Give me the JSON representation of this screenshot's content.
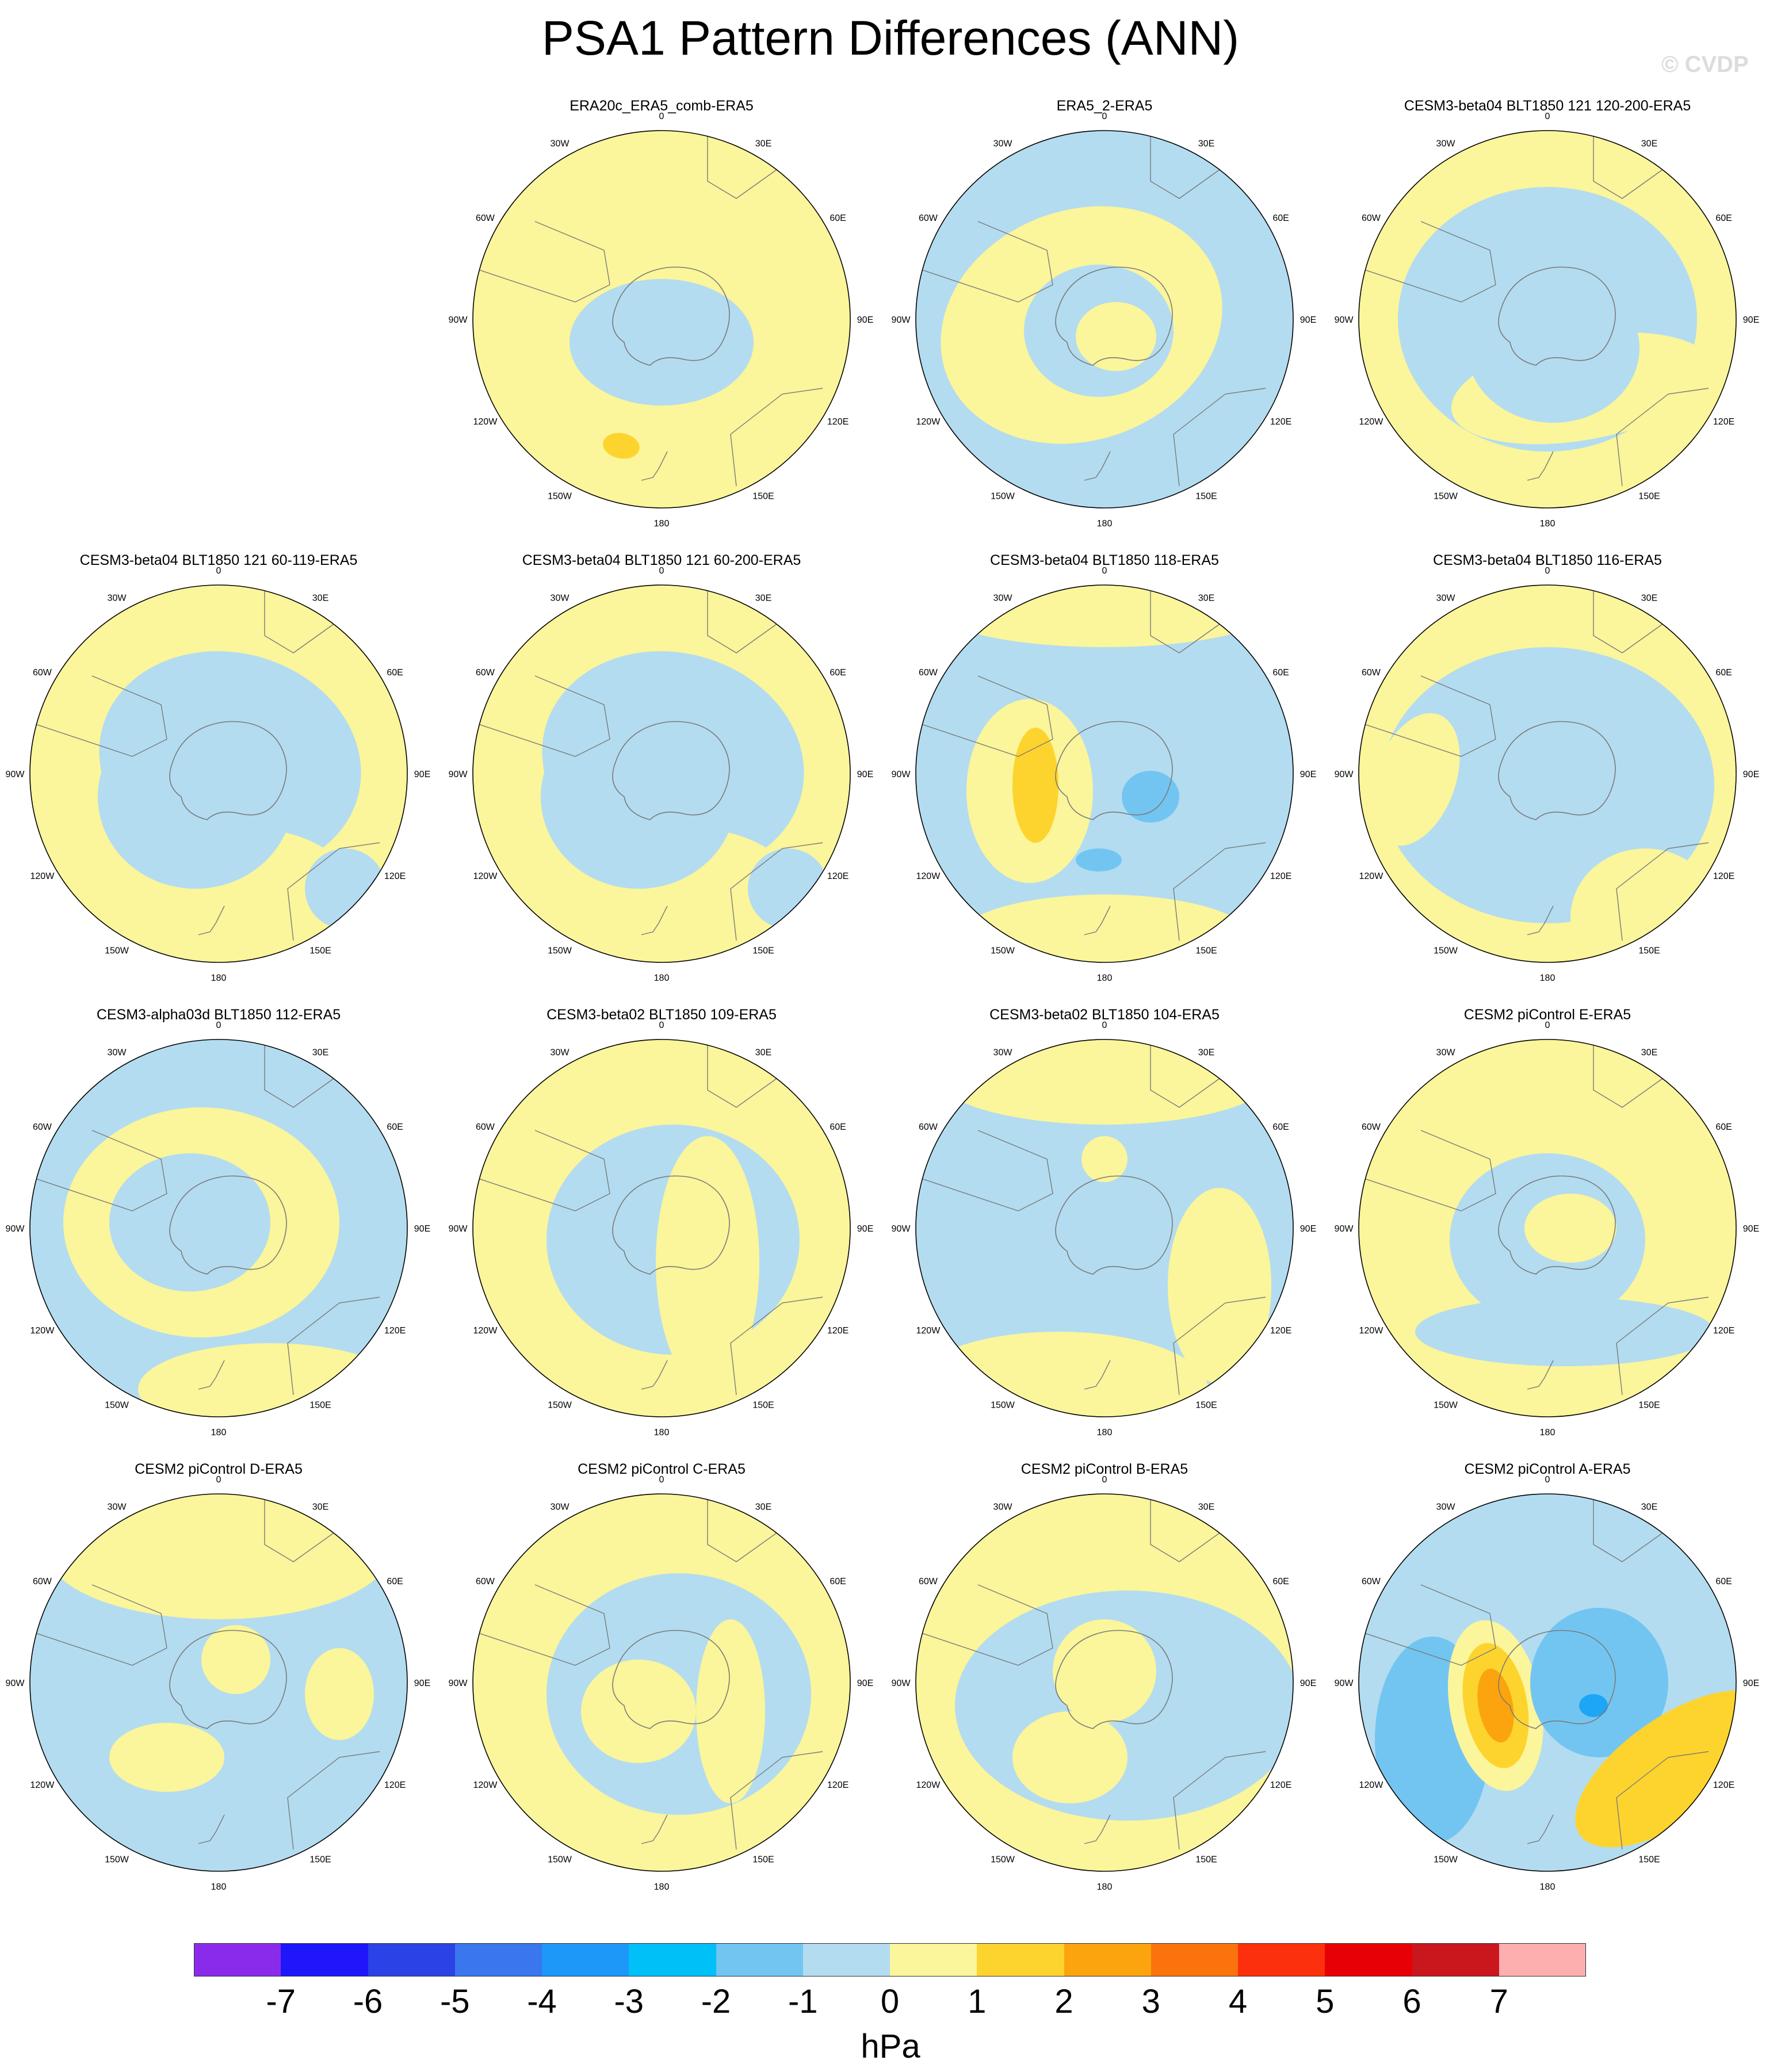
{
  "title": "PSA1 Pattern Differences (ANN)",
  "watermark": "© CVDP",
  "colors": {
    "neg1": "#b3dcf0",
    "pos1": "#fbf59b",
    "pos2": "#fdd42e",
    "pos3": "#fba40e",
    "neg2": "#73c5f1",
    "neg3": "#1da6f5"
  },
  "lon_labels": [
    "0",
    "30E",
    "60E",
    "90E",
    "120E",
    "150E",
    "180",
    "150W",
    "120W",
    "90W",
    "60W",
    "30W"
  ],
  "panels": [
    {
      "title": "ERA20c_ERA5_comb-ERA5",
      "variant": 0
    },
    {
      "title": "ERA5_2-ERA5",
      "variant": 1
    },
    {
      "title": "CESM3-beta04 BLT1850 121 120-200-ERA5",
      "variant": 2
    },
    {
      "title": "CESM3-beta04 BLT1850 121 60-119-ERA5",
      "variant": 3
    },
    {
      "title": "CESM3-beta04 BLT1850 121 60-200-ERA5",
      "variant": 3
    },
    {
      "title": "CESM3-beta04 BLT1850 118-ERA5",
      "variant": 4
    },
    {
      "title": "CESM3-beta04 BLT1850 116-ERA5",
      "variant": 5
    },
    {
      "title": "CESM3-alpha03d BLT1850 112-ERA5",
      "variant": 6
    },
    {
      "title": "CESM3-beta02 BLT1850 109-ERA5",
      "variant": 7
    },
    {
      "title": "CESM3-beta02 BLT1850 104-ERA5",
      "variant": 8
    },
    {
      "title": "CESM2 piControl E-ERA5",
      "variant": 9
    },
    {
      "title": "CESM2 piControl D-ERA5",
      "variant": 10
    },
    {
      "title": "CESM2 piControl C-ERA5",
      "variant": 11
    },
    {
      "title": "CESM2 piControl B-ERA5",
      "variant": 12
    },
    {
      "title": "CESM2 piControl A-ERA5",
      "variant": 13
    }
  ],
  "colorbar": {
    "colors": [
      "#8a2bec",
      "#1f16fb",
      "#2b43e6",
      "#3a76ee",
      "#1e98f8",
      "#00c0f8",
      "#73c5f1",
      "#b3dcf0",
      "#fbf59b",
      "#fdd42e",
      "#fba40e",
      "#fb730d",
      "#fc300c",
      "#e80007",
      "#c9171d",
      "#fdafaf"
    ],
    "labels": [
      "-7",
      "-6",
      "-5",
      "-4",
      "-3",
      "-2",
      "-1",
      "0",
      "1",
      "2",
      "3",
      "4",
      "5",
      "6",
      "7"
    ],
    "unit": "hPa"
  }
}
